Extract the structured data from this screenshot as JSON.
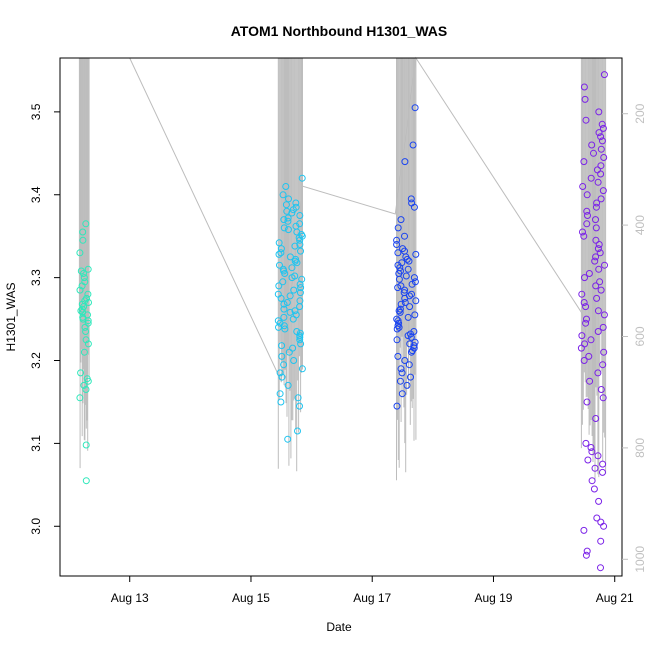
{
  "chart_data": {
    "type": "scatter",
    "title": "ATOM1 Northbound H1301_WAS",
    "xlabel": "Date",
    "ylabel": "H1301_WAS",
    "x_ticks": [
      {
        "day": 13,
        "label": "Aug 13"
      },
      {
        "day": 15,
        "label": "Aug 15"
      },
      {
        "day": 17,
        "label": "Aug 17"
      },
      {
        "day": 19,
        "label": "Aug 19"
      },
      {
        "day": 21,
        "label": "Aug 21"
      }
    ],
    "xlim": [
      11.85,
      21.12
    ],
    "ylim": [
      2.94,
      3.565
    ],
    "y_ticks": [
      "3.0",
      "3.1",
      "3.2",
      "3.3",
      "3.4",
      "3.5"
    ],
    "right_axis": {
      "ticks": [
        "200",
        "400",
        "600",
        "800",
        "1000"
      ],
      "range": [
        100,
        1030
      ],
      "color": "#c0c0c0"
    },
    "grid": false,
    "legend": "none",
    "altitude_color": "#bdbdbd",
    "flights": [
      {
        "color": "#2ee8bb",
        "day_range": [
          12.17,
          12.33
        ],
        "values": [
          3.055,
          3.098,
          3.155,
          3.165,
          3.17,
          3.175,
          3.178,
          3.185,
          3.21,
          3.22,
          3.225,
          3.235,
          3.24,
          3.245,
          3.248,
          3.25,
          3.252,
          3.255,
          3.258,
          3.26,
          3.262,
          3.265,
          3.268,
          3.27,
          3.272,
          3.275,
          3.28,
          3.285,
          3.29,
          3.295,
          3.3,
          3.305,
          3.308,
          3.31,
          3.33,
          3.345,
          3.355,
          3.365
        ]
      },
      {
        "color": "#1ec4f0",
        "day_range": [
          15.45,
          15.85
        ],
        "values": [
          3.105,
          3.115,
          3.145,
          3.15,
          3.155,
          3.16,
          3.17,
          3.18,
          3.185,
          3.19,
          3.195,
          3.2,
          3.205,
          3.21,
          3.215,
          3.218,
          3.22,
          3.225,
          3.228,
          3.23,
          3.233,
          3.235,
          3.238,
          3.24,
          3.242,
          3.245,
          3.248,
          3.25,
          3.252,
          3.255,
          3.258,
          3.26,
          3.262,
          3.265,
          3.268,
          3.27,
          3.272,
          3.275,
          3.278,
          3.28,
          3.282,
          3.285,
          3.288,
          3.29,
          3.292,
          3.295,
          3.298,
          3.3,
          3.302,
          3.305,
          3.308,
          3.31,
          3.312,
          3.315,
          3.318,
          3.32,
          3.322,
          3.325,
          3.328,
          3.33,
          3.332,
          3.335,
          3.338,
          3.34,
          3.342,
          3.345,
          3.348,
          3.35,
          3.352,
          3.355,
          3.358,
          3.36,
          3.362,
          3.365,
          3.368,
          3.37,
          3.372,
          3.375,
          3.378,
          3.38,
          3.382,
          3.385,
          3.388,
          3.39,
          3.395,
          3.4,
          3.41,
          3.42
        ]
      },
      {
        "color": "#1a44f0",
        "day_range": [
          17.4,
          17.72
        ],
        "values": [
          3.145,
          3.16,
          3.17,
          3.175,
          3.18,
          3.185,
          3.19,
          3.195,
          3.2,
          3.205,
          3.21,
          3.212,
          3.215,
          3.218,
          3.22,
          3.222,
          3.225,
          3.228,
          3.23,
          3.232,
          3.235,
          3.238,
          3.24,
          3.242,
          3.245,
          3.248,
          3.25,
          3.252,
          3.255,
          3.258,
          3.26,
          3.262,
          3.265,
          3.268,
          3.27,
          3.272,
          3.275,
          3.278,
          3.28,
          3.282,
          3.285,
          3.288,
          3.29,
          3.292,
          3.295,
          3.298,
          3.3,
          3.302,
          3.305,
          3.308,
          3.31,
          3.312,
          3.315,
          3.318,
          3.32,
          3.322,
          3.325,
          3.328,
          3.33,
          3.332,
          3.335,
          3.34,
          3.345,
          3.35,
          3.36,
          3.37,
          3.385,
          3.39,
          3.395,
          3.44,
          3.46,
          3.505
        ]
      },
      {
        "color": "#7b22e8",
        "day_range": [
          20.45,
          20.85
        ],
        "values": [
          2.95,
          2.965,
          2.97,
          2.982,
          2.995,
          3.0,
          3.005,
          3.01,
          3.03,
          3.045,
          3.055,
          3.065,
          3.07,
          3.075,
          3.08,
          3.085,
          3.09,
          3.095,
          3.1,
          3.13,
          3.15,
          3.155,
          3.165,
          3.175,
          3.185,
          3.195,
          3.2,
          3.205,
          3.21,
          3.215,
          3.22,
          3.225,
          3.23,
          3.235,
          3.24,
          3.245,
          3.25,
          3.255,
          3.26,
          3.265,
          3.27,
          3.275,
          3.28,
          3.285,
          3.29,
          3.295,
          3.3,
          3.305,
          3.31,
          3.315,
          3.32,
          3.325,
          3.33,
          3.335,
          3.34,
          3.345,
          3.35,
          3.355,
          3.36,
          3.365,
          3.37,
          3.375,
          3.38,
          3.385,
          3.39,
          3.395,
          3.4,
          3.405,
          3.41,
          3.415,
          3.42,
          3.425,
          3.43,
          3.435,
          3.44,
          3.445,
          3.45,
          3.455,
          3.46,
          3.465,
          3.47,
          3.475,
          3.48,
          3.485,
          3.49,
          3.5,
          3.515,
          3.53,
          3.545
        ]
      }
    ],
    "altitude_path": [
      {
        "day": 12.28,
        "alt": 100
      },
      {
        "day": 13.0,
        "alt": 100
      },
      {
        "day": 15.5,
        "alt": 680
      },
      {
        "day": 15.85,
        "alt": 330
      },
      {
        "day": 17.38,
        "alt": 380
      },
      {
        "day": 17.72,
        "alt": 100
      },
      {
        "day": 20.47,
        "alt": 560
      },
      {
        "day": 20.6,
        "alt": 640
      }
    ]
  }
}
